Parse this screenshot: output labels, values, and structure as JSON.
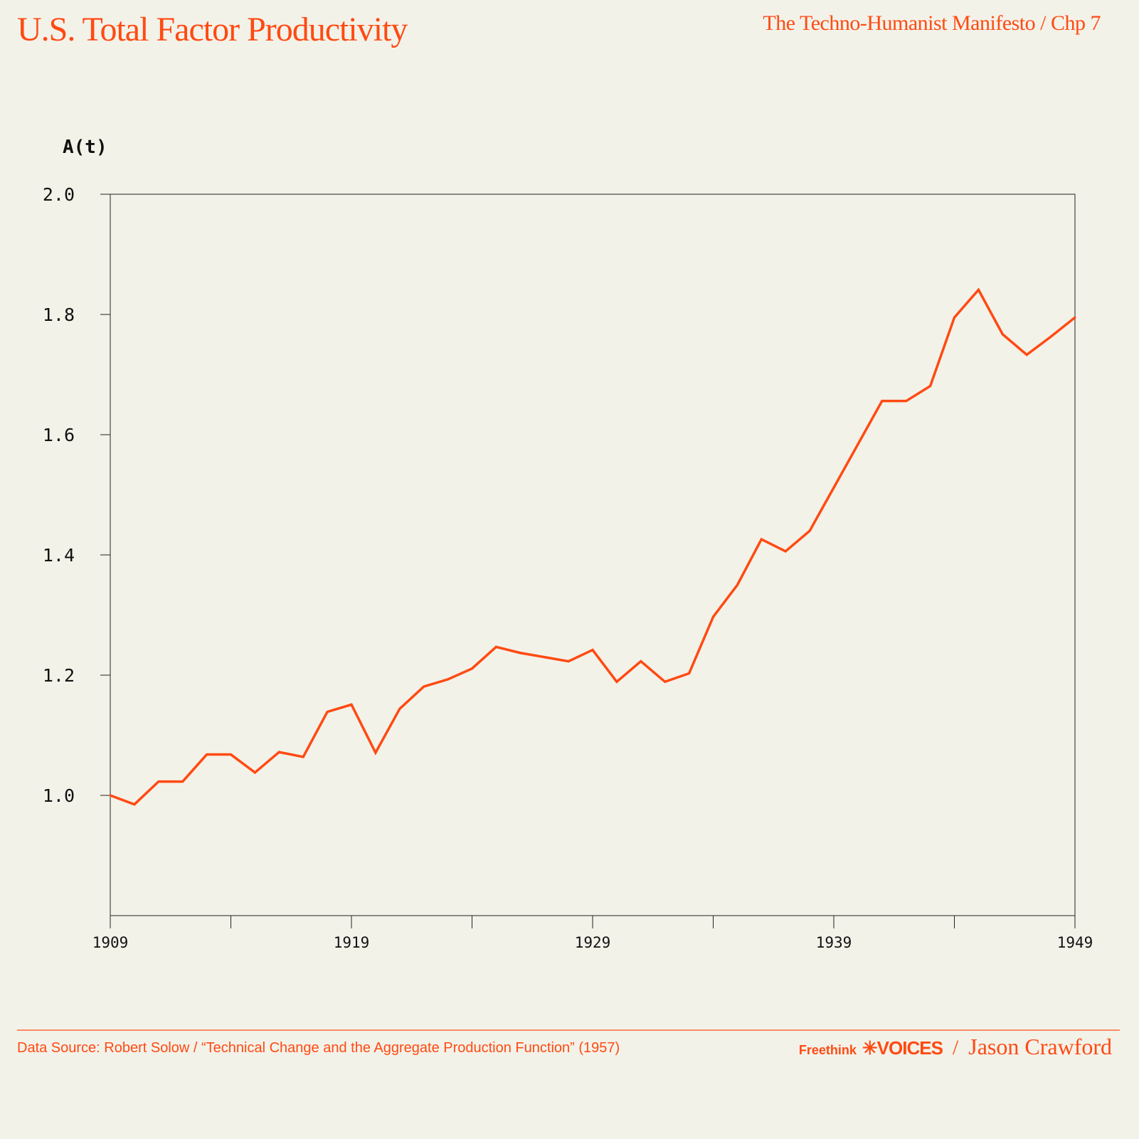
{
  "header": {
    "title": "U.S. Total Factor Productivity",
    "subtitle": "The Techno-Humanist Manifesto / Chp 7"
  },
  "footer": {
    "source": "Data Source: Robert Solow / “Technical Change and the Aggregate Production Function” (1957)",
    "brand_freethink": "Freethink",
    "brand_voices": "✳VOICES",
    "separator": "/",
    "author": "Jason Crawford"
  },
  "chart_data": {
    "type": "line",
    "title": "U.S. Total Factor Productivity",
    "ylabel": "A(t)",
    "xlabel": "",
    "xlim": [
      1909,
      1949
    ],
    "ylim": [
      0.8,
      2.0
    ],
    "xticks": [
      1909,
      1919,
      1929,
      1939,
      1949
    ],
    "xticks_minor": [
      1914,
      1924,
      1934,
      1944
    ],
    "yticks": [
      "1.0",
      "1.2",
      "1.4",
      "1.6",
      "1.8",
      "2.0"
    ],
    "color": "#ff4a12",
    "grid": false,
    "x": [
      1909,
      1910,
      1911,
      1912,
      1913,
      1914,
      1915,
      1916,
      1917,
      1918,
      1919,
      1920,
      1921,
      1922,
      1923,
      1924,
      1925,
      1926,
      1927,
      1928,
      1929,
      1930,
      1931,
      1932,
      1933,
      1934,
      1935,
      1936,
      1937,
      1938,
      1939,
      1940,
      1941,
      1942,
      1943,
      1944,
      1945,
      1946,
      1947,
      1948,
      1949
    ],
    "values": [
      1.0,
      0.985,
      1.023,
      1.023,
      1.068,
      1.068,
      1.038,
      1.072,
      1.064,
      1.139,
      1.151,
      1.071,
      1.144,
      1.181,
      1.193,
      1.211,
      1.247,
      1.237,
      1.23,
      1.223,
      1.242,
      1.189,
      1.223,
      1.189,
      1.203,
      1.297,
      1.35,
      1.426,
      1.406,
      1.44,
      1.512,
      1.584,
      1.656,
      1.656,
      1.681,
      1.795,
      1.841,
      1.767,
      1.733,
      1.763,
      1.795
    ]
  }
}
